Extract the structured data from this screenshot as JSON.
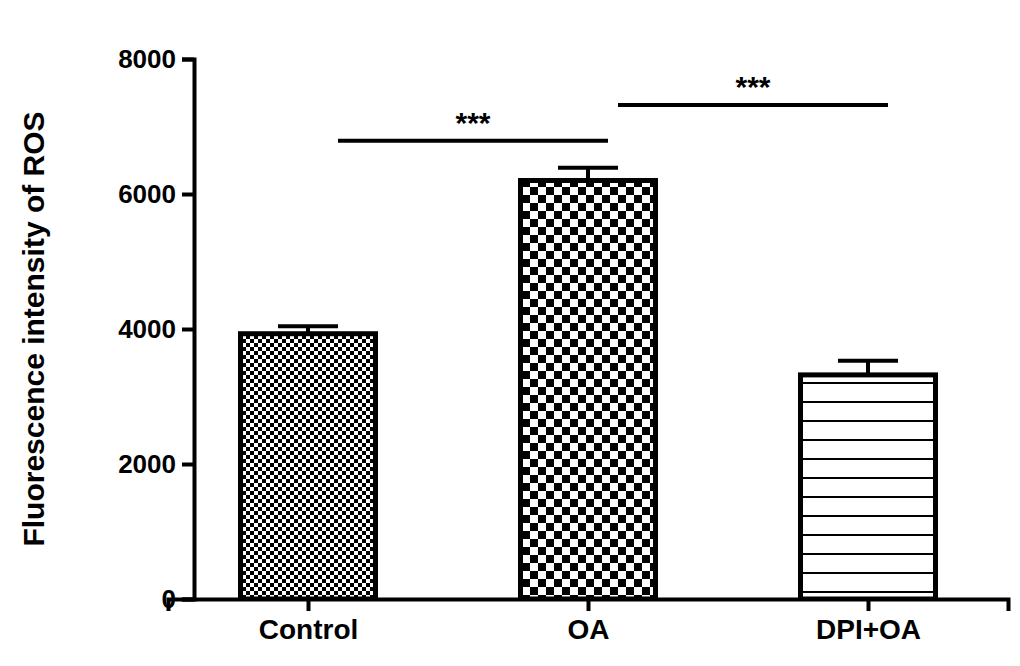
{
  "chart_data": {
    "type": "bar",
    "y_label": "Fluorescence intensity of ROS",
    "categories": [
      "Control",
      "OA",
      "DPI+OA"
    ],
    "values": [
      3930,
      6200,
      3320
    ],
    "errors": [
      110,
      190,
      210
    ],
    "color": "#000000",
    "ylim": [
      0,
      8000
    ],
    "yticks": [
      0,
      2000,
      4000,
      6000,
      8000
    ],
    "grid": false,
    "annotations": [
      {
        "text": "***",
        "from": "Control",
        "to": "OA",
        "y": 6790
      },
      {
        "text": "***",
        "from": "OA",
        "to": "DPI+OA",
        "y": 7320
      }
    ]
  }
}
